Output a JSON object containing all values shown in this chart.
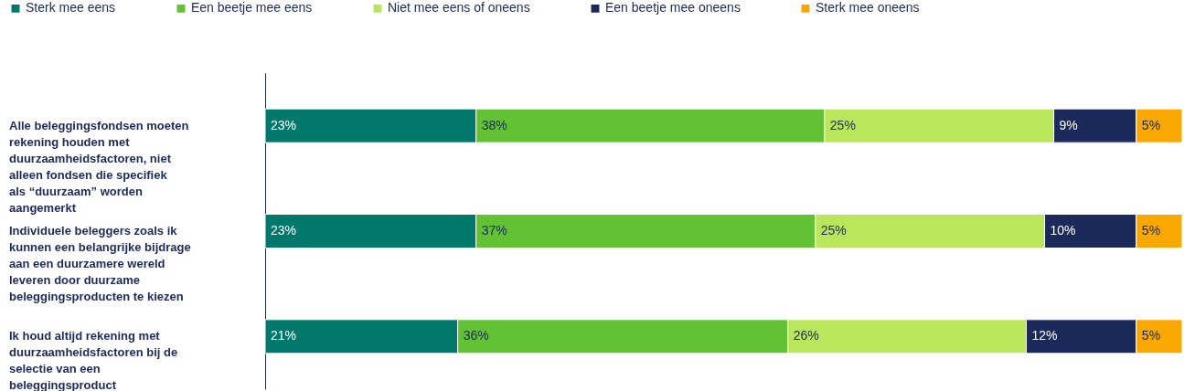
{
  "chart_data": {
    "type": "bar",
    "orientation": "horizontal",
    "stacked": true,
    "legend": "top",
    "categories": [
      "Alle beleggingsfondsen moeten rekening houden met duurzaamheidsfactoren, niet alleen fondsen die specifiek als “duurzaam” worden aangemerkt",
      "Individuele beleggers zoals ik kunnen een belangrijke bijdrage aan een duurzamere wereld leveren door duurzame beleggingsproducten te kiezen",
      "Ik houd altijd rekening met duurzaamheidsfactoren bij de selectie van een beleggingsproduct"
    ],
    "series": [
      {
        "name": "Sterk mee eens",
        "color": "#00786b",
        "values": [
          23,
          23,
          21
        ],
        "value_labels": [
          "23%",
          "23%",
          "21%"
        ]
      },
      {
        "name": "Een beetje mee eens",
        "color": "#62c234",
        "values": [
          38,
          37,
          36
        ],
        "value_labels": [
          "38%",
          "37%",
          "36%"
        ]
      },
      {
        "name": "Niet mee eens of oneens",
        "color": "#b9e65a",
        "values": [
          25,
          25,
          26
        ],
        "value_labels": [
          "25%",
          "25%",
          "26%"
        ]
      },
      {
        "name": "Een beetje mee oneens",
        "color": "#1b2a5a",
        "values": [
          9,
          10,
          12
        ],
        "value_labels": [
          "9%",
          "10%",
          "12%"
        ]
      },
      {
        "name": "Sterk mee oneens",
        "color": "#f8a800",
        "values": [
          5,
          5,
          5
        ],
        "value_labels": [
          "5%",
          "5%",
          "5%"
        ]
      }
    ]
  }
}
